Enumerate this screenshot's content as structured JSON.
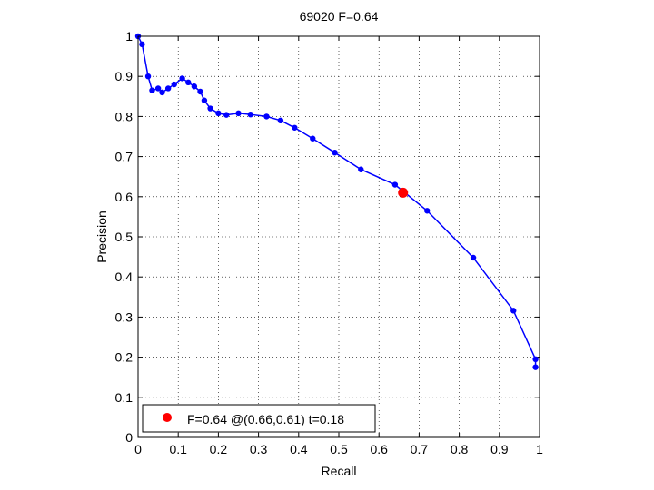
{
  "chart_data": {
    "type": "line",
    "title": "69020 F=0.64",
    "xlabel": "Recall",
    "ylabel": "Precision",
    "xlim": [
      0,
      1
    ],
    "ylim": [
      0,
      1
    ],
    "xticks": [
      "0",
      "0.1",
      "0.2",
      "0.3",
      "0.4",
      "0.5",
      "0.6",
      "0.7",
      "0.8",
      "0.9",
      "1"
    ],
    "yticks": [
      "0",
      "0.1",
      "0.2",
      "0.3",
      "0.4",
      "0.5",
      "0.6",
      "0.7",
      "0.8",
      "0.9",
      "1"
    ],
    "grid": true,
    "grid_style": "dotted",
    "legend_position": "bottom-left",
    "series": [
      {
        "color": "#0000ff",
        "marker": "dot",
        "x": [
          0.0,
          0.01,
          0.025,
          0.035,
          0.05,
          0.06,
          0.075,
          0.09,
          0.11,
          0.125,
          0.14,
          0.155,
          0.165,
          0.18,
          0.2,
          0.22,
          0.25,
          0.28,
          0.32,
          0.355,
          0.39,
          0.435,
          0.49,
          0.555,
          0.64,
          0.72,
          0.835,
          0.935,
          0.99,
          0.99
        ],
        "y": [
          1.0,
          0.98,
          0.9,
          0.865,
          0.87,
          0.86,
          0.87,
          0.88,
          0.895,
          0.885,
          0.875,
          0.862,
          0.84,
          0.82,
          0.808,
          0.804,
          0.808,
          0.805,
          0.8,
          0.79,
          0.772,
          0.745,
          0.71,
          0.668,
          0.63,
          0.565,
          0.448,
          0.316,
          0.195,
          0.175
        ]
      }
    ],
    "highlight": {
      "x": 0.66,
      "y": 0.61,
      "color": "#ff0000",
      "label": "F=0.64 @(0.66,0.61) t=0.18"
    }
  }
}
